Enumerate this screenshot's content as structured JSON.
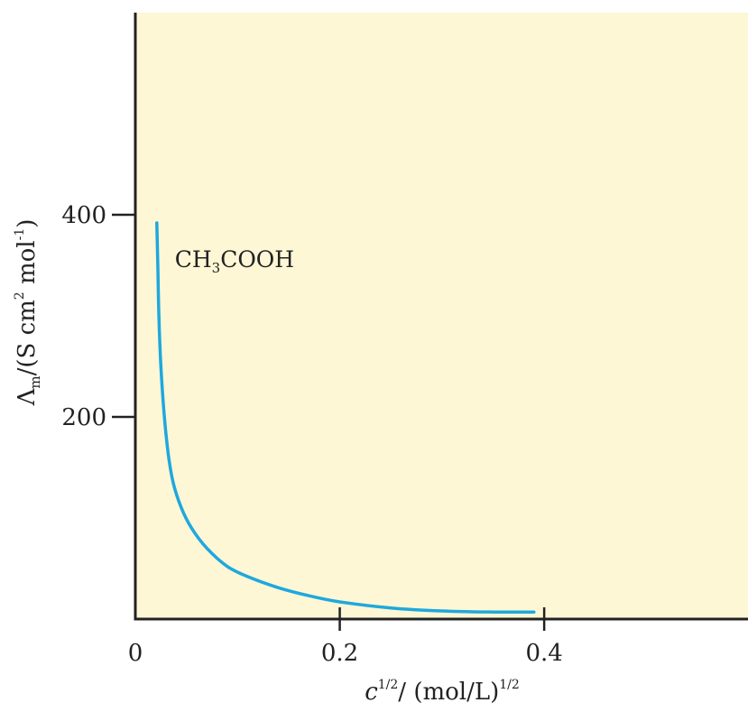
{
  "chart_data": {
    "type": "line",
    "title": "",
    "xlabel": {
      "var": "c",
      "var_sup": "1/2",
      "unit": "/ (mol/L)",
      "unit_sup": "1/2"
    },
    "ylabel": {
      "symbol": "Λ",
      "symbol_sub": "m",
      "unit_a": "/(S cm",
      "unit_a_sup": "2",
      "unit_b": " mol",
      "unit_b_sup": "-1",
      "unit_c": ")"
    },
    "xlim": [
      0,
      0.6
    ],
    "ylim": [
      0,
      600
    ],
    "x_ticks": [
      {
        "value": 0,
        "label": "0"
      },
      {
        "value": 0.2,
        "label": "0.2"
      },
      {
        "value": 0.4,
        "label": "0.4"
      }
    ],
    "y_ticks": [
      {
        "value": 200,
        "label": "200"
      },
      {
        "value": 400,
        "label": "400"
      }
    ],
    "grid": false,
    "background_color": "#fdf7d5",
    "line_color": "#1fa8dd",
    "series": [
      {
        "name": "",
        "x": [
          0.021,
          0.022,
          0.023,
          0.025,
          0.028,
          0.032,
          0.037,
          0.045,
          0.055,
          0.07,
          0.09,
          0.11,
          0.14,
          0.17,
          0.2,
          0.25,
          0.3,
          0.35,
          0.39
        ],
        "y": [
          392,
          350,
          300,
          250,
          205,
          165,
          135,
          110,
          90,
          70,
          52,
          42,
          31,
          23,
          17,
          11,
          8,
          7,
          7
        ]
      }
    ],
    "annotations": [
      {
        "label_parts": {
          "a": "CH",
          "sub": "3",
          "b": "COOH"
        },
        "x": 0.028,
        "y": 350
      }
    ]
  }
}
